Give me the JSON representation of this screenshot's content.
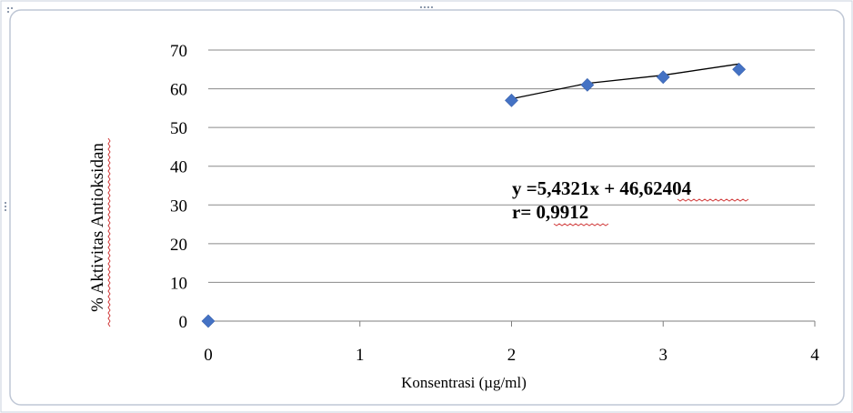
{
  "chart_data": {
    "type": "scatter",
    "xlabel": "Konsentrasi (µg/ml)",
    "ylabel": "% Aktivitas Antioksidan",
    "xlim": [
      0,
      4
    ],
    "ylim": [
      0,
      70
    ],
    "x_ticks": [
      "0",
      "1",
      "2",
      "3",
      "4"
    ],
    "y_ticks": [
      "0",
      "10",
      "20",
      "30",
      "40",
      "50",
      "60",
      "70"
    ],
    "grid": "horizontal",
    "points": [
      {
        "x": 0,
        "y": 0
      },
      {
        "x": 2,
        "y": 57
      },
      {
        "x": 2.5,
        "y": 61
      },
      {
        "x": 3,
        "y": 63
      },
      {
        "x": 3.5,
        "y": 65
      }
    ],
    "trendline": [
      {
        "x": 2,
        "y": 57.4
      },
      {
        "x": 2.5,
        "y": 61.4
      },
      {
        "x": 3,
        "y": 63.5
      },
      {
        "x": 3.5,
        "y": 66.4
      }
    ],
    "annotations": {
      "equation": "y =5,4321x + 46,62404",
      "r_value": "r= 0,9912"
    },
    "colors": {
      "marker": "#4472c4",
      "trendline": "#000000",
      "grid": "#8a8a8a",
      "frame": "#bfc7d5"
    }
  }
}
